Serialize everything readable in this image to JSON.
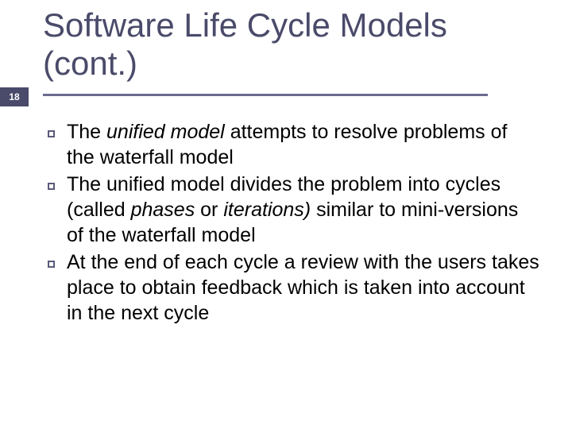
{
  "page_number": "18",
  "title": "Software Life Cycle Models (cont.)",
  "colors": {
    "badge_bg": "#4a4a6a",
    "badge_text": "#ffffff",
    "title_text": "#4a4a6a",
    "underline": "#6b6b8f",
    "body_text": "#000000",
    "marker_border": "#5a5a7a",
    "background": "#ffffff"
  },
  "typography": {
    "title_fontsize": 42,
    "body_fontsize": 25,
    "badge_fontsize": 12
  },
  "bullets": [
    {
      "runs": [
        {
          "text": "The ",
          "italic": false
        },
        {
          "text": "unified model ",
          "italic": true
        },
        {
          "text": "attempts to resolve problems of the waterfall model",
          "italic": false
        }
      ]
    },
    {
      "runs": [
        {
          "text": "The unified model divides the problem into cycles (called ",
          "italic": false
        },
        {
          "text": "phases ",
          "italic": true
        },
        {
          "text": "or ",
          "italic": false
        },
        {
          "text": "iterations) ",
          "italic": true
        },
        {
          "text": "similar to mini-versions of the waterfall model",
          "italic": false
        }
      ]
    },
    {
      "runs": [
        {
          "text": "At the end of each cycle a review with the users takes place to obtain feedback which is taken into account in the next cycle",
          "italic": false
        }
      ]
    }
  ]
}
